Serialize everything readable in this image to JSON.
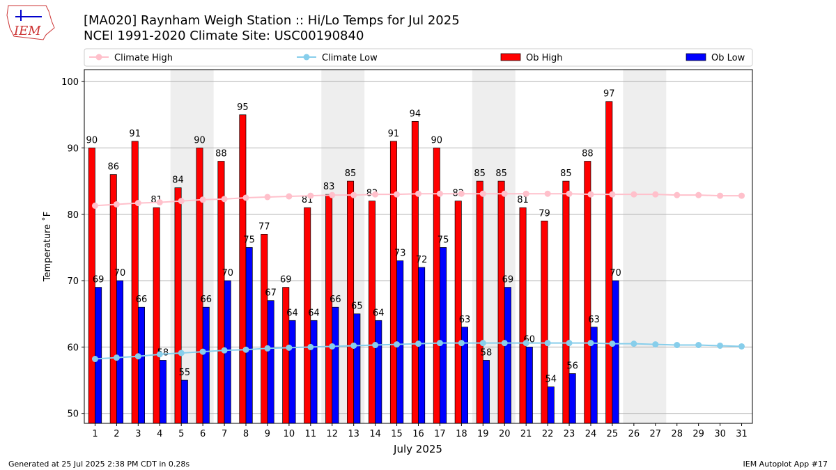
{
  "logo_text": "IEM",
  "footer_left": "Generated at 25 Jul 2025 2:38 PM CDT in 0.28s",
  "footer_right": "IEM Autoplot App #17",
  "chart_data": {
    "type": "bar",
    "title": "[MA020] Raynham Weigh Station  :: Hi/Lo Temps for Jul 2025",
    "subtitle": "NCEI 1991-2020 Climate Site: USC00190840",
    "x_label": "July 2025",
    "y_label": "Temperature ˚F",
    "x": [
      1,
      2,
      3,
      4,
      5,
      6,
      7,
      8,
      9,
      10,
      11,
      12,
      13,
      14,
      15,
      16,
      17,
      18,
      19,
      20,
      21,
      22,
      23,
      24,
      25,
      26,
      27,
      28,
      29,
      30,
      31
    ],
    "xlim": [
      0.5,
      31.5
    ],
    "ylim": [
      48.5,
      101.8
    ],
    "yticks": [
      50,
      60,
      70,
      80,
      90,
      100
    ],
    "grid": true,
    "weekend_bands": [
      [
        5,
        6
      ],
      [
        12,
        13
      ],
      [
        19,
        20
      ],
      [
        26,
        27
      ]
    ],
    "series": [
      {
        "name": "Climate High",
        "color": "#ffc0cb",
        "mark": "line",
        "values": [
          81.3,
          81.5,
          81.7,
          81.8,
          82.0,
          82.2,
          82.3,
          82.5,
          82.6,
          82.7,
          82.8,
          82.9,
          82.9,
          83.0,
          83.0,
          83.1,
          83.1,
          83.1,
          83.1,
          83.1,
          83.1,
          83.1,
          83.1,
          83.0,
          83.0,
          83.0,
          83.0,
          82.9,
          82.9,
          82.8,
          82.8
        ]
      },
      {
        "name": "Climate Low",
        "color": "#87ceeb",
        "mark": "line",
        "values": [
          58.2,
          58.4,
          58.6,
          58.9,
          59.1,
          59.3,
          59.5,
          59.6,
          59.8,
          59.9,
          60.0,
          60.1,
          60.2,
          60.3,
          60.4,
          60.5,
          60.6,
          60.6,
          60.6,
          60.6,
          60.6,
          60.6,
          60.6,
          60.6,
          60.5,
          60.5,
          60.4,
          60.3,
          60.3,
          60.2,
          60.1
        ]
      },
      {
        "name": "Ob High",
        "color": "#ff0000",
        "mark": "bar",
        "values": [
          90,
          86,
          91,
          81,
          84,
          90,
          88,
          95,
          77,
          69,
          81,
          83,
          85,
          82,
          91,
          94,
          90,
          82,
          85,
          85,
          81,
          79,
          85,
          88,
          97,
          null,
          null,
          null,
          null,
          null,
          null
        ]
      },
      {
        "name": "Ob Low",
        "color": "#0000ff",
        "mark": "bar",
        "values": [
          69,
          70,
          66,
          58,
          55,
          66,
          70,
          75,
          67,
          64,
          64,
          66,
          65,
          64,
          73,
          72,
          75,
          63,
          58,
          69,
          60,
          54,
          56,
          63,
          70,
          null,
          null,
          null,
          null,
          null,
          null
        ]
      }
    ]
  }
}
